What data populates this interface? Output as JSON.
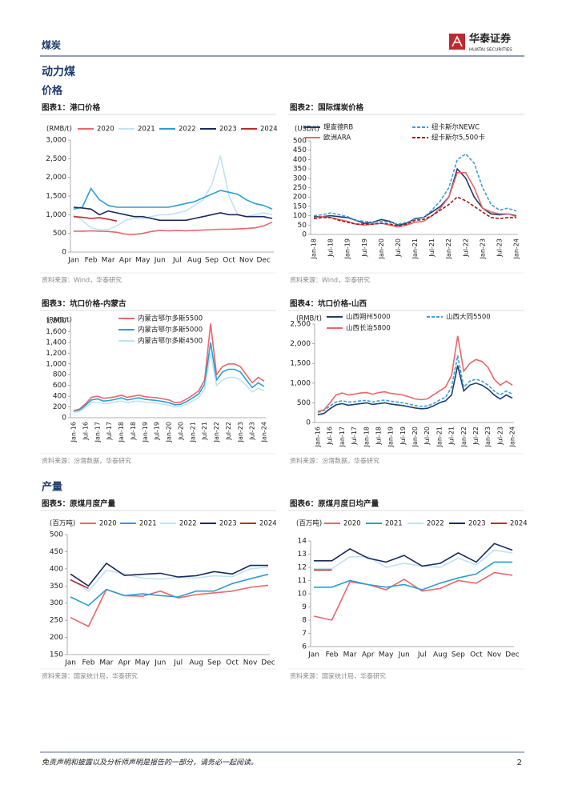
{
  "header": {
    "section": "煤炭",
    "brand": "华泰证券",
    "brand_en": "HUATAI SECURITIES"
  },
  "headings": {
    "h1": "动力煤",
    "price": "价格",
    "output": "产量"
  },
  "footer": {
    "disclaimer": "免责声明和披露以及分析师声明是报告的一部分，请务必一起阅读。",
    "page": "2"
  },
  "chart_data": [
    {
      "type": "line",
      "title": "图表1：港口价格",
      "source": "资料来源：Wind，华泰研究",
      "y_unit": "(RMB/t)",
      "categories": [
        "Jan",
        null,
        "Feb",
        null,
        "Mar",
        null,
        "Apr",
        null,
        "May",
        null,
        "Jun",
        null,
        "Jul",
        null,
        "Aug",
        null,
        "Sep",
        null,
        "Oct",
        null,
        "Nov",
        null,
        "Dec",
        null
      ],
      "ylim": [
        0,
        3000
      ],
      "yticks": [
        0,
        500,
        {
          "value": 1000,
          "label": "1,000"
        },
        {
          "value": 1500,
          "label": "1,500"
        },
        {
          "value": 2000,
          "label": "2,000"
        },
        {
          "value": 2500,
          "label": "2,500"
        },
        {
          "value": 3000,
          "label": "3,000"
        }
      ],
      "series": [
        {
          "name": "2020",
          "color": "#e8676b",
          "values": [
            560,
            560,
            570,
            560,
            550,
            530,
            480,
            470,
            500,
            550,
            580,
            570,
            580,
            570,
            580,
            590,
            600,
            610,
            610,
            620,
            630,
            650,
            700,
            800
          ]
        },
        {
          "name": "2021",
          "color": "#bfe3f5",
          "values": [
            1000,
            850,
            650,
            600,
            600,
            700,
            850,
            900,
            900,
            950,
            1000,
            1000,
            1050,
            1100,
            1250,
            1400,
            1800,
            2580,
            1500,
            1000,
            950,
            1000,
            1050,
            1000
          ]
        },
        {
          "name": "2022",
          "color": "#2a9fd6",
          "values": [
            1150,
            1200,
            1700,
            1400,
            1250,
            1200,
            1200,
            1200,
            1200,
            1200,
            1200,
            1200,
            1250,
            1300,
            1350,
            1450,
            1550,
            1650,
            1600,
            1550,
            1400,
            1300,
            1250,
            1150
          ]
        },
        {
          "name": "2023",
          "color": "#1a2a5e",
          "values": [
            1200,
            1180,
            1150,
            1000,
            1100,
            1050,
            1000,
            950,
            950,
            900,
            850,
            850,
            850,
            850,
            900,
            950,
            1000,
            1050,
            1000,
            1000,
            950,
            950,
            950,
            900
          ]
        },
        {
          "name": "2024",
          "color": "#c0282d",
          "values": [
            950,
            930,
            900,
            920,
            880,
            830,
            null,
            null,
            null,
            null,
            null,
            null,
            null,
            null,
            null,
            null,
            null,
            null,
            null,
            null,
            null,
            null,
            null,
            null
          ]
        }
      ]
    },
    {
      "type": "line",
      "title": "图表2：国际煤炭价格",
      "source": "资料来源：Wind，华泰研究",
      "y_unit": "(USD/t)",
      "categories": [
        "Jan-18",
        null,
        "Jul-18",
        null,
        "Jan-19",
        null,
        "Jul-19",
        null,
        "Jan-20",
        null,
        "Jul-20",
        null,
        "Jan-21",
        null,
        "Jul-21",
        null,
        "Jan-22",
        null,
        "Jul-22",
        null,
        "Jan-23",
        null,
        "Jul-23",
        null,
        "Jan-24"
      ],
      "ylim": [
        0,
        500
      ],
      "yticks": [
        0,
        50,
        100,
        150,
        200,
        250,
        300,
        350,
        400,
        450,
        500
      ],
      "series": [
        {
          "name": "理查德RB",
          "color": "#1f3c6e",
          "dash": false,
          "values": [
            95,
            95,
            100,
            95,
            90,
            75,
            60,
            65,
            80,
            70,
            50,
            60,
            85,
            90,
            120,
            150,
            200,
            350,
            300,
            200,
            140,
            110,
            105,
            110,
            100
          ]
        },
        {
          "name": "纽卡斯尔NEWC",
          "color": "#3aa0e0",
          "dash": true,
          "values": [
            100,
            105,
            115,
            105,
            95,
            75,
            70,
            65,
            70,
            65,
            55,
            65,
            80,
            90,
            130,
            180,
            250,
            400,
            430,
            380,
            250,
            160,
            130,
            140,
            125
          ]
        },
        {
          "name": "欧洲ARA",
          "color": "#e8676b",
          "dash": false,
          "values": [
            90,
            95,
            90,
            80,
            70,
            55,
            50,
            55,
            60,
            50,
            40,
            50,
            65,
            70,
            100,
            140,
            200,
            330,
            330,
            250,
            140,
            120,
            110,
            110,
            95
          ]
        },
        {
          "name": "纽卡斯尔5,500卡",
          "color": "#a01c1c",
          "dash": true,
          "values": [
            85,
            90,
            90,
            75,
            65,
            55,
            55,
            55,
            60,
            55,
            45,
            55,
            75,
            80,
            100,
            130,
            160,
            200,
            180,
            150,
            120,
            90,
            85,
            90,
            90
          ]
        }
      ]
    },
    {
      "type": "line",
      "title": "图表3：坑口价格-内蒙古",
      "source": "资料来源：汾渭数据，华泰研究",
      "y_unit": "(RMB/t)",
      "categories": [
        "Jan-16",
        null,
        "Jul-16",
        null,
        "Jan-17",
        null,
        "Jul-17",
        null,
        "Jan-18",
        null,
        "Jul-18",
        null,
        "Jan-19",
        null,
        "Jul-19",
        null,
        "Jan-20",
        null,
        "Jul-20",
        null,
        "Jan-21",
        null,
        "Jul-21",
        null,
        "Jan-22",
        null,
        "Jul-22",
        null,
        "Jan-23",
        null,
        "Jul-23",
        null,
        "Jan-24"
      ],
      "ylim": [
        0,
        1800
      ],
      "yticks": [
        0,
        200,
        400,
        600,
        800,
        {
          "value": 1000,
          "label": "1,000"
        },
        {
          "value": 1200,
          "label": "1,200"
        },
        {
          "value": 1400,
          "label": "1,400"
        },
        {
          "value": 1600,
          "label": "1,600"
        },
        {
          "value": 1800,
          "label": "1,800"
        }
      ],
      "series": [
        {
          "name": "内蒙古鄂尔多斯5500",
          "color": "#e8676b",
          "values": [
            130,
            160,
            260,
            380,
            400,
            360,
            370,
            390,
            420,
            380,
            400,
            420,
            390,
            380,
            370,
            350,
            330,
            280,
            290,
            350,
            420,
            500,
            700,
            1750,
            800,
            950,
            1000,
            1000,
            950,
            800,
            650,
            750,
            680
          ]
        },
        {
          "name": "内蒙古鄂尔多斯5000",
          "color": "#2a9fd6",
          "values": [
            110,
            140,
            230,
            330,
            350,
            310,
            320,
            340,
            370,
            330,
            350,
            370,
            340,
            330,
            320,
            300,
            280,
            240,
            250,
            300,
            370,
            440,
            620,
            1400,
            700,
            850,
            900,
            900,
            850,
            700,
            560,
            650,
            580
          ]
        },
        {
          "name": "内蒙古鄂尔多斯4500",
          "color": "#bfe3f5",
          "values": [
            100,
            120,
            190,
            280,
            290,
            260,
            270,
            290,
            310,
            280,
            300,
            310,
            290,
            280,
            270,
            250,
            230,
            200,
            210,
            250,
            310,
            370,
            530,
            1200,
            600,
            700,
            750,
            750,
            700,
            600,
            480,
            550,
            500
          ]
        }
      ]
    },
    {
      "type": "line",
      "title": "图表4：坑口价格-山西",
      "source": "资料来源：汾渭数据，华泰研究",
      "y_unit": "(RMB/t)",
      "categories": [
        "Jan-16",
        null,
        "Jul-16",
        null,
        "Jan-17",
        null,
        "Jul-17",
        null,
        "Jan-18",
        null,
        "Jul-18",
        null,
        "Jan-19",
        null,
        "Jul-19",
        null,
        "Jan-20",
        null,
        "Jul-20",
        null,
        "Jan-21",
        null,
        "Jul-21",
        null,
        "Jan-22",
        null,
        "Jul-22",
        null,
        "Jan-23",
        null,
        "Jul-23",
        null,
        "Jan-24"
      ],
      "ylim": [
        0,
        2500
      ],
      "yticks": [
        0,
        500,
        {
          "value": 1000,
          "label": "1,000"
        },
        {
          "value": 1500,
          "label": "1,500"
        },
        {
          "value": 2000,
          "label": "2,000"
        },
        {
          "value": 2500,
          "label": "2,500"
        }
      ],
      "series": [
        {
          "name": "山西朔州5000",
          "color": "#1f3c6e",
          "dash": false,
          "values": [
            200,
            230,
            350,
            450,
            480,
            440,
            460,
            480,
            500,
            460,
            480,
            500,
            470,
            450,
            430,
            400,
            370,
            350,
            360,
            420,
            500,
            550,
            700,
            1450,
            800,
            950,
            1000,
            950,
            850,
            700,
            600,
            700,
            620
          ]
        },
        {
          "name": "山西大同5500",
          "color": "#3aa0e0",
          "dash": true,
          "values": [
            260,
            300,
            420,
            520,
            550,
            520,
            530,
            550,
            560,
            520,
            550,
            570,
            540,
            520,
            500,
            470,
            430,
            410,
            420,
            480,
            570,
            640,
            900,
            1700,
            900,
            1050,
            1100,
            1050,
            950,
            800,
            700,
            800,
            720
          ]
        },
        {
          "name": "山西长治5800",
          "color": "#e8676b",
          "dash": false,
          "values": [
            280,
            320,
            500,
            700,
            750,
            700,
            720,
            750,
            760,
            720,
            760,
            780,
            740,
            720,
            700,
            650,
            600,
            580,
            600,
            700,
            800,
            900,
            1200,
            2200,
            1300,
            1500,
            1600,
            1550,
            1400,
            1100,
            950,
            1050,
            950
          ]
        }
      ]
    },
    {
      "type": "line",
      "title": "图表5：原煤月度产量",
      "source": "资料来源：国家统计局，华泰研究",
      "y_unit": "(百万吨)",
      "categories": [
        "Jan",
        "Feb",
        "Mar",
        "Apr",
        "May",
        "Jun",
        "Jul",
        "Aug",
        "Sep",
        "Oct",
        "Nov",
        "Dec"
      ],
      "ylim": [
        150,
        500
      ],
      "yticks": [
        150,
        200,
        250,
        300,
        350,
        400,
        450,
        500
      ],
      "series": [
        {
          "name": "2020",
          "color": "#e8676b",
          "values": [
            258,
            232,
            340,
            322,
            320,
            335,
            315,
            325,
            330,
            335,
            346,
            352
          ]
        },
        {
          "name": "2021",
          "color": "#2a9fd6",
          "values": [
            318,
            293,
            340,
            322,
            327,
            322,
            318,
            335,
            335,
            357,
            371,
            384
          ]
        },
        {
          "name": "2022",
          "color": "#bfe3f5",
          "values": [
            370,
            335,
            396,
            385,
            373,
            370,
            375,
            373,
            380,
            377,
            400,
            405
          ]
        },
        {
          "name": "2023",
          "color": "#1a2a5e",
          "values": [
            385,
            350,
            416,
            381,
            384,
            387,
            376,
            380,
            392,
            385,
            410,
            410
          ]
        },
        {
          "name": "2024",
          "color": "#c0282d",
          "values": [
            368,
            343,
            null,
            null,
            null,
            null,
            null,
            null,
            null,
            null,
            null,
            null
          ]
        }
      ]
    },
    {
      "type": "line",
      "title": "图表6：原煤月度日均产量",
      "source": "资料来源：国家统计局，华泰研究",
      "y_unit": "(百万吨)",
      "categories": [
        "Jan",
        "Feb",
        "Mar",
        "Apr",
        "May",
        "Jun",
        "Jul",
        "Aug",
        "Sep",
        "Oct",
        "Nov",
        "Dec"
      ],
      "ylim": [
        6,
        14
      ],
      "yticks": [
        6,
        7,
        8,
        9,
        10,
        11,
        12,
        13,
        14
      ],
      "series": [
        {
          "name": "2020",
          "color": "#e8676b",
          "values": [
            8.3,
            8.0,
            10.9,
            10.7,
            10.3,
            11.1,
            10.2,
            10.4,
            11.0,
            10.8,
            11.6,
            11.4
          ]
        },
        {
          "name": "2021",
          "color": "#2a9fd6",
          "values": [
            10.5,
            10.5,
            11.0,
            10.7,
            10.5,
            10.7,
            10.3,
            10.8,
            11.2,
            11.5,
            12.4,
            12.4
          ]
        },
        {
          "name": "2022",
          "color": "#bfe3f5",
          "values": [
            11.9,
            11.9,
            12.8,
            12.8,
            12.0,
            12.3,
            12.1,
            12.0,
            12.7,
            12.2,
            13.3,
            13.1
          ]
        },
        {
          "name": "2023",
          "color": "#1a2a5e",
          "values": [
            12.5,
            12.5,
            13.4,
            12.7,
            12.4,
            12.9,
            12.1,
            12.3,
            13.1,
            12.4,
            13.8,
            13.3
          ]
        },
        {
          "name": "2024",
          "color": "#c0282d",
          "values": [
            11.8,
            11.8,
            null,
            null,
            null,
            null,
            null,
            null,
            null,
            null,
            null,
            null
          ]
        }
      ]
    }
  ]
}
